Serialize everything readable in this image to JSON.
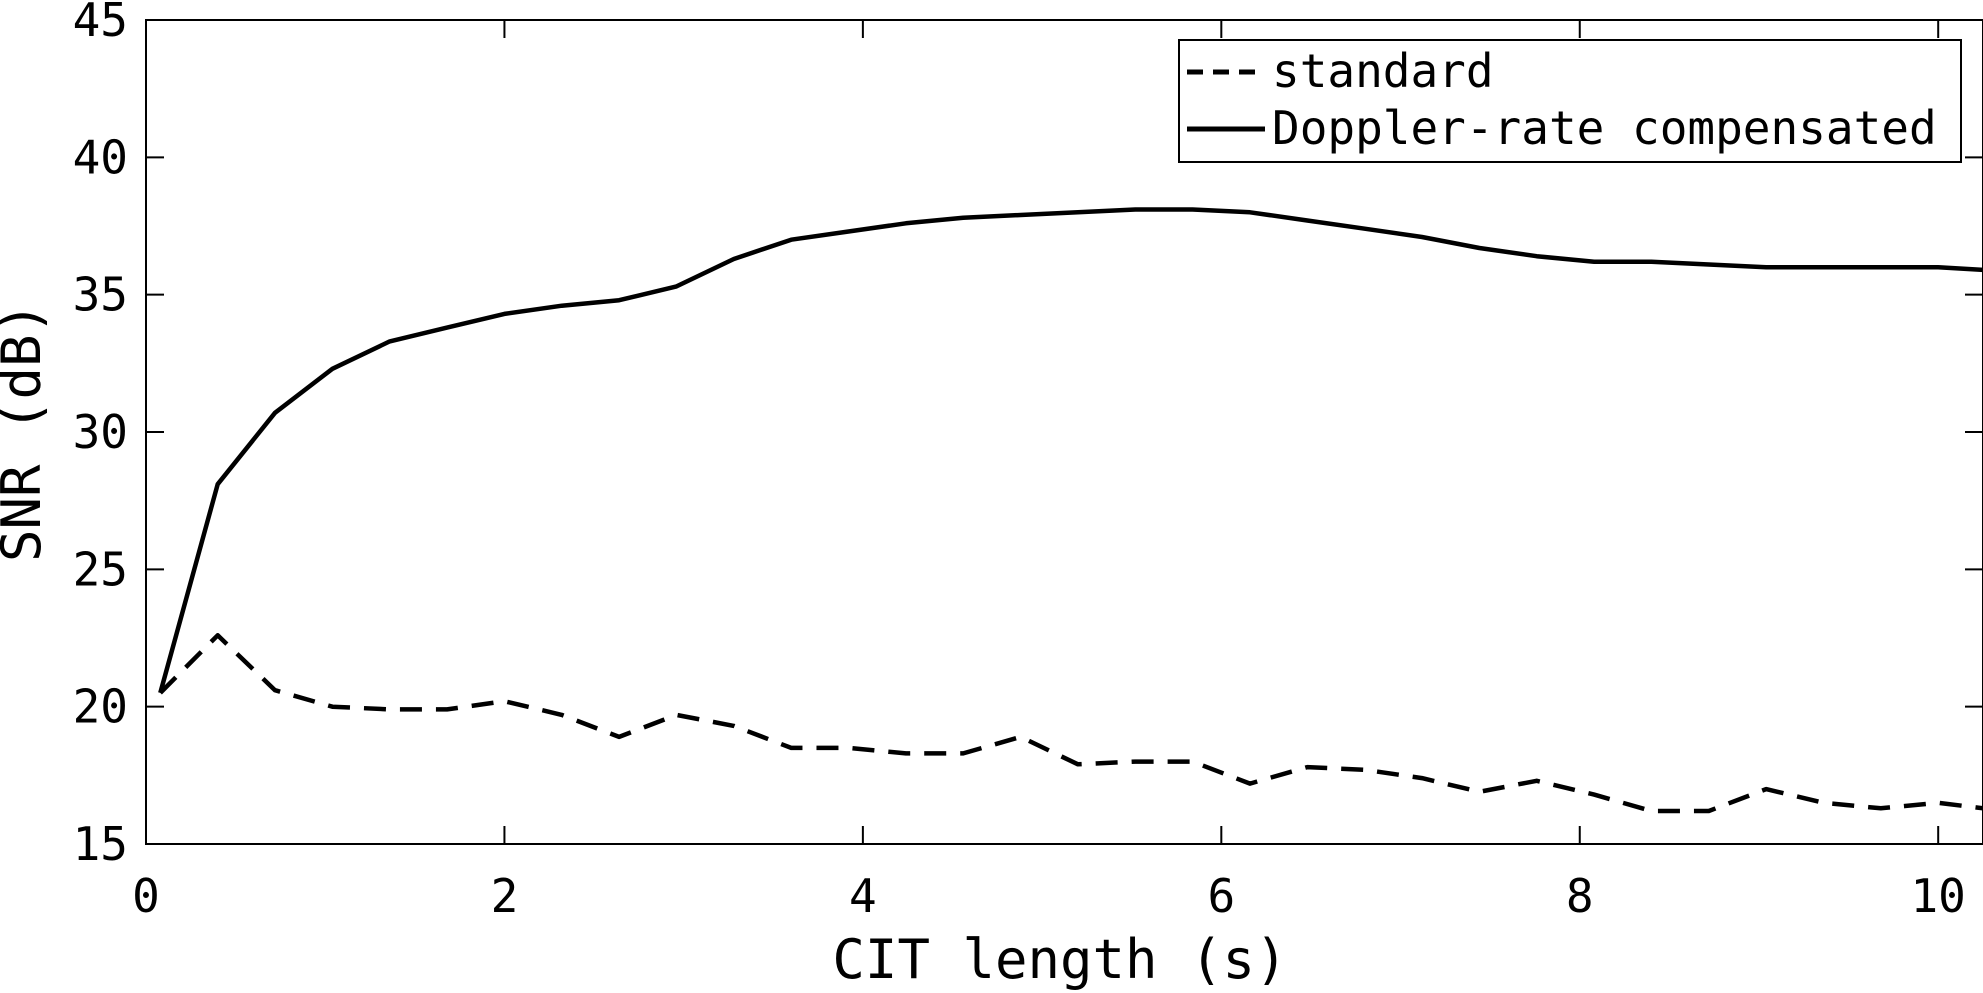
{
  "chart_data": {
    "type": "line",
    "xlabel": "CIT length (s)",
    "ylabel": "SNR (dB)",
    "xlim": [
      0,
      10.25
    ],
    "ylim": [
      15,
      45
    ],
    "xticks": [
      0,
      2,
      4,
      6,
      8,
      10
    ],
    "yticks": [
      15,
      20,
      25,
      30,
      35,
      40,
      45
    ],
    "grid": false,
    "legend_position": "top-right",
    "series": [
      {
        "name": "standard",
        "style": "dashed",
        "color": "#000000",
        "x": [
          0.08,
          0.4,
          0.72,
          1.04,
          1.36,
          1.68,
          2.0,
          2.32,
          2.64,
          2.96,
          3.28,
          3.6,
          3.92,
          4.24,
          4.56,
          4.88,
          5.2,
          5.52,
          5.84,
          6.16,
          6.48,
          6.8,
          7.12,
          7.44,
          7.76,
          8.08,
          8.4,
          8.72,
          9.04,
          9.36,
          9.68,
          10.0,
          10.25
        ],
        "values": [
          20.5,
          22.6,
          20.6,
          20.0,
          19.9,
          19.9,
          20.2,
          19.7,
          18.9,
          19.7,
          19.3,
          18.5,
          18.5,
          18.3,
          18.3,
          18.9,
          17.9,
          18.0,
          18.0,
          17.2,
          17.8,
          17.7,
          17.4,
          16.9,
          17.3,
          16.8,
          16.2,
          16.2,
          17.0,
          16.5,
          16.3,
          16.5,
          16.3
        ]
      },
      {
        "name": "Doppler-rate compensated",
        "style": "solid",
        "color": "#000000",
        "x": [
          0.08,
          0.4,
          0.72,
          1.04,
          1.36,
          1.68,
          2.0,
          2.32,
          2.64,
          2.96,
          3.28,
          3.6,
          3.92,
          4.24,
          4.56,
          4.88,
          5.2,
          5.52,
          5.84,
          6.16,
          6.48,
          6.8,
          7.12,
          7.44,
          7.76,
          8.08,
          8.4,
          8.72,
          9.04,
          9.36,
          9.68,
          10.0,
          10.25
        ],
        "values": [
          20.5,
          28.1,
          30.7,
          32.3,
          33.3,
          33.8,
          34.3,
          34.6,
          34.8,
          35.3,
          36.3,
          37.0,
          37.3,
          37.6,
          37.8,
          37.9,
          38.0,
          38.1,
          38.1,
          38.0,
          37.7,
          37.4,
          37.1,
          36.7,
          36.4,
          36.2,
          36.2,
          36.1,
          36.0,
          36.0,
          36.0,
          36.0,
          35.9
        ]
      }
    ]
  }
}
